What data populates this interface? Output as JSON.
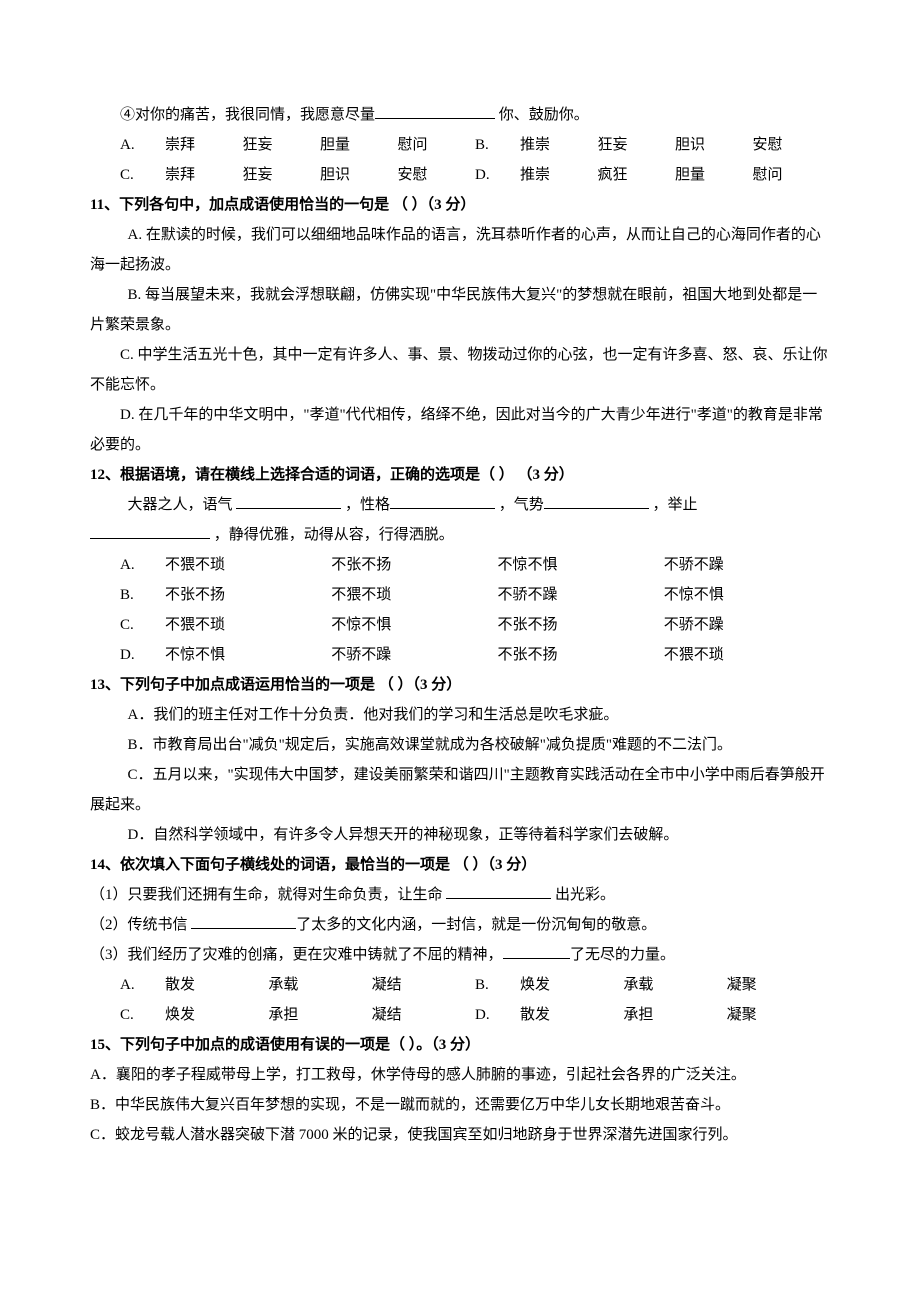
{
  "top": {
    "line4": "④对你的痛苦，我很同情，我愿意尽量",
    "line4_tail": " 你、鼓励你。",
    "opts": [
      {
        "label": "A.",
        "c1": "崇拜",
        "c2": "狂妄",
        "c3": "胆量",
        "c4": "慰问",
        "label2": "B.",
        "d1": "推崇",
        "d2": "狂妄",
        "d3": "胆识",
        "d4": "安慰"
      },
      {
        "label": "C.",
        "c1": "崇拜",
        "c2": "狂妄",
        "c3": "胆识",
        "c4": "安慰",
        "label2": "D.",
        "d1": "推崇",
        "d2": "疯狂",
        "d3": "胆量",
        "d4": "慰问"
      }
    ]
  },
  "q11": {
    "title": "11、下列各句中，加点成语使用恰当的一句是  （      ）（3 分）",
    "a": "A.  在默读的时候，我们可以细细地品味作品的语言，洗耳恭听作者的心声，从而让自己的心海同作者的心海一起扬波。",
    "b": "B.  每当展望未来，我就会浮想联翩，仿佛实现\"中华民族伟大复兴\"的梦想就在眼前，祖国大地到处都是一片繁荣景象。",
    "c": "C.  中学生活五光十色，其中一定有许多人、事、景、物拨动过你的心弦，也一定有许多喜、怒、哀、乐让你不能忘怀。",
    "d": "D.  在几千年的中华文明中，\"孝道\"代代相传，络绎不绝，因此对当今的广大青少年进行\"孝道\"的教育是非常必要的。"
  },
  "q12": {
    "title": "12、根据语境，请在横线上选择合适的词语，正确的选项是（       ）  （3 分）",
    "stem_a": "大器之人，语气  ",
    "stem_b": "  ，性格",
    "stem_c": "  ，气势",
    "stem_d": "  ，举止",
    "stem_e": "",
    "stem_f": "  ，静得优雅，动得从容，行得洒脱。",
    "opts": [
      {
        "label": "A.",
        "c1": "不猥不琐",
        "c2": "不张不扬",
        "c3": "不惊不惧",
        "c4": "不骄不躁"
      },
      {
        "label": "B.",
        "c1": "不张不扬",
        "c2": "不猥不琐",
        "c3": "不骄不躁",
        "c4": "不惊不惧"
      },
      {
        "label": "C.",
        "c1": "不猥不琐",
        "c2": "不惊不惧",
        "c3": "不张不扬",
        "c4": "不骄不躁"
      },
      {
        "label": "D.",
        "c1": "不惊不惧",
        "c2": "不骄不躁",
        "c3": "不张不扬",
        "c4": "不猥不琐"
      }
    ]
  },
  "q13": {
    "title": "13、下列句子中加点成语运用恰当的一项是  （        ）（3 分）",
    "a": "A．我们的班主任对工作十分负责．他对我们的学习和生活总是吹毛求疵。",
    "b": "B．市教育局出台\"减负\"规定后，实施高效课堂就成为各校破解\"减负提质\"难题的不二法门。",
    "c": "C．五月以来，\"实现伟大中国梦，建设美丽繁荣和谐四川\"主题教育实践活动在全市中小学中雨后春笋般开展起来。",
    "d": "D．自然科学领域中，有许多令人异想天开的神秘现象，正等待着科学家们去破解。"
  },
  "q14": {
    "title": "14、依次填入下面句子横线处的词语，最恰当的一项是  （         ）（3 分）",
    "s1a": "（1）只要我们还拥有生命，就得对生命负责，让生命  ",
    "s1b": "  出光彩。",
    "s2a": "（2）传统书信  ",
    "s2b": "了太多的文化内涵，一封信，就是一份沉甸甸的敬意。",
    "s3a": "（3）我们经历了灾难的创痛，更在灾难中铸就了不屈的精神，",
    "s3b": "了无尽的力量。",
    "opts": [
      {
        "label": "A.",
        "c1": "散发",
        "c2": "承载",
        "c3": "凝结",
        "label2": "B.",
        "d1": "焕发",
        "d2": "承载",
        "d3": "凝聚"
      },
      {
        "label": "C.",
        "c1": "焕发",
        "c2": "承担",
        "c3": "凝结",
        "label2": "D.",
        "d1": "散发",
        "d2": "承担",
        "d3": "凝聚"
      }
    ]
  },
  "q15": {
    "title": "15、下列句子中加点的成语使用有误的一项是（        ）。（3 分）",
    "a": "A．襄阳的孝子程威带母上学，打工救母，休学侍母的感人肺腑的事迹，引起社会各界的广泛关注。",
    "b": "B．中华民族伟大复兴百年梦想的实现，不是一蹴而就的，还需要亿万中华儿女长期地艰苦奋斗。",
    "c": "C．蛟龙号载人潜水器突破下潜 7000 米的记录，使我国宾至如归地跻身于世界深潜先进国家行列。"
  }
}
